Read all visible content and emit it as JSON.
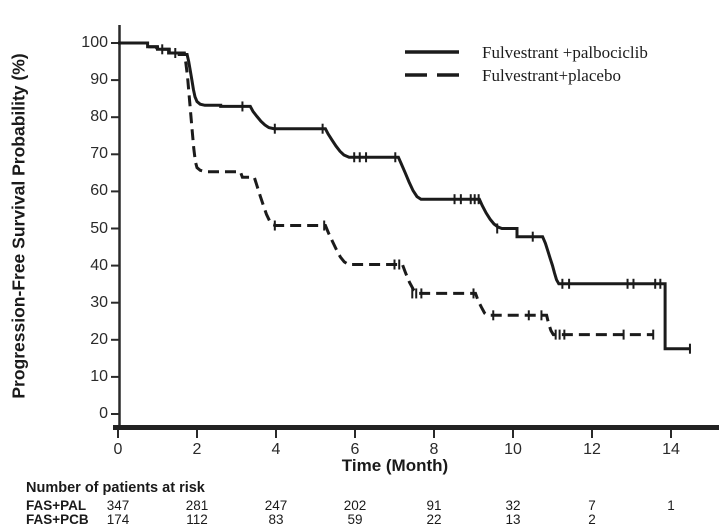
{
  "chart_data": {
    "type": "line",
    "subtype": "kaplan-meier-step",
    "title": "",
    "xlabel": "Time (Month)",
    "ylabel": "Progression-Free Survival Probability (%)",
    "xlim": [
      0,
      15.2
    ],
    "ylim": [
      0,
      100
    ],
    "x_ticks": [
      0,
      2,
      4,
      6,
      8,
      10,
      12,
      14
    ],
    "y_ticks": [
      0,
      10,
      20,
      30,
      40,
      50,
      60,
      70,
      80,
      90,
      100
    ],
    "grid": false,
    "legend_position": "top-right",
    "line_color": "#1b1b1b",
    "series": [
      {
        "name": "Fulvestrant +palbociclib",
        "style": "solid",
        "points": [
          [
            0,
            100
          ],
          [
            0.75,
            100
          ],
          [
            0.75,
            99
          ],
          [
            1.0,
            99
          ],
          [
            1.0,
            98.3
          ],
          [
            1.3,
            98.3
          ],
          [
            1.3,
            97.3
          ],
          [
            1.55,
            97.3
          ],
          [
            1.55,
            96.9
          ],
          [
            1.75,
            96.9
          ],
          [
            1.79,
            95
          ],
          [
            1.83,
            92.5
          ],
          [
            1.87,
            90
          ],
          [
            1.91,
            87.5
          ],
          [
            1.95,
            85.5
          ],
          [
            2.0,
            84.2
          ],
          [
            2.08,
            83.5
          ],
          [
            2.2,
            83.2
          ],
          [
            2.6,
            83.2
          ],
          [
            2.6,
            82.9
          ],
          [
            3.35,
            82.9
          ],
          [
            3.42,
            81.5
          ],
          [
            3.52,
            80.2
          ],
          [
            3.62,
            78.9
          ],
          [
            3.72,
            77.9
          ],
          [
            3.82,
            77.2
          ],
          [
            3.95,
            76.9
          ],
          [
            5.25,
            76.9
          ],
          [
            5.32,
            75.5
          ],
          [
            5.42,
            73.8
          ],
          [
            5.52,
            72.2
          ],
          [
            5.62,
            70.8
          ],
          [
            5.72,
            69.8
          ],
          [
            5.85,
            69.2
          ],
          [
            7.1,
            69.2
          ],
          [
            7.17,
            67.5
          ],
          [
            7.27,
            65.0
          ],
          [
            7.37,
            62.5
          ],
          [
            7.47,
            60.2
          ],
          [
            7.57,
            58.6
          ],
          [
            7.67,
            57.9
          ],
          [
            9.15,
            57.9
          ],
          [
            9.22,
            56.2
          ],
          [
            9.32,
            54.2
          ],
          [
            9.42,
            52.5
          ],
          [
            9.52,
            51.2
          ],
          [
            9.62,
            50.4
          ],
          [
            9.72,
            50.0
          ],
          [
            10.1,
            50.0
          ],
          [
            10.1,
            47.8
          ],
          [
            10.75,
            47.8
          ],
          [
            10.82,
            46.0
          ],
          [
            10.88,
            44.0
          ],
          [
            10.94,
            42.0
          ],
          [
            11.0,
            40.0
          ],
          [
            11.05,
            38.0
          ],
          [
            11.1,
            36.2
          ],
          [
            11.16,
            35.1
          ],
          [
            13.85,
            35.1
          ],
          [
            13.85,
            17.6
          ],
          [
            14.5,
            17.6
          ]
        ],
        "censors": [
          [
            1.12,
            98.3
          ],
          [
            1.45,
            97.3
          ],
          [
            3.15,
            82.9
          ],
          [
            3.97,
            76.9
          ],
          [
            5.18,
            76.9
          ],
          [
            5.98,
            69.2
          ],
          [
            6.12,
            69.2
          ],
          [
            6.28,
            69.2
          ],
          [
            7.02,
            69.2
          ],
          [
            8.52,
            57.9
          ],
          [
            8.68,
            57.9
          ],
          [
            8.93,
            57.9
          ],
          [
            9.03,
            57.9
          ],
          [
            9.13,
            57.9
          ],
          [
            9.6,
            50.0
          ],
          [
            10.5,
            47.8
          ],
          [
            11.25,
            35.1
          ],
          [
            11.42,
            35.1
          ],
          [
            12.9,
            35.1
          ],
          [
            13.05,
            35.1
          ],
          [
            13.6,
            35.1
          ],
          [
            13.73,
            35.1
          ],
          [
            14.48,
            17.6
          ]
        ]
      },
      {
        "name": "Fulvestrant+placebo",
        "style": "dashed",
        "points": [
          [
            0,
            100
          ],
          [
            0.72,
            100
          ],
          [
            0.72,
            99
          ],
          [
            0.98,
            99
          ],
          [
            0.98,
            98.3
          ],
          [
            1.28,
            98.3
          ],
          [
            1.28,
            97.3
          ],
          [
            1.68,
            97.3
          ],
          [
            1.72,
            94.5
          ],
          [
            1.76,
            91.0
          ],
          [
            1.8,
            86.0
          ],
          [
            1.84,
            81.0
          ],
          [
            1.88,
            76.0
          ],
          [
            1.92,
            71.5
          ],
          [
            1.96,
            68.0
          ],
          [
            2.0,
            66.4
          ],
          [
            2.08,
            65.7
          ],
          [
            2.2,
            65.3
          ],
          [
            3.1,
            65.3
          ],
          [
            3.15,
            63.8
          ],
          [
            3.45,
            63.8
          ],
          [
            3.52,
            61.5
          ],
          [
            3.6,
            58.8
          ],
          [
            3.68,
            56.2
          ],
          [
            3.76,
            53.8
          ],
          [
            3.84,
            52.0
          ],
          [
            3.92,
            51.0
          ],
          [
            4.0,
            50.8
          ],
          [
            5.25,
            50.8
          ],
          [
            5.33,
            48.8
          ],
          [
            5.43,
            46.5
          ],
          [
            5.53,
            44.3
          ],
          [
            5.63,
            42.3
          ],
          [
            5.73,
            41.0
          ],
          [
            5.83,
            40.3
          ],
          [
            7.2,
            40.3
          ],
          [
            7.28,
            38.0
          ],
          [
            7.38,
            35.5
          ],
          [
            7.48,
            33.5
          ],
          [
            7.58,
            32.5
          ],
          [
            9.05,
            32.5
          ],
          [
            9.12,
            30.5
          ],
          [
            9.2,
            28.8
          ],
          [
            9.28,
            27.2
          ],
          [
            9.35,
            26.6
          ],
          [
            10.85,
            26.6
          ],
          [
            10.9,
            24.5
          ],
          [
            10.96,
            22.5
          ],
          [
            11.02,
            21.4
          ],
          [
            13.55,
            21.4
          ]
        ],
        "censors": [
          [
            3.97,
            50.8
          ],
          [
            5.22,
            50.8
          ],
          [
            7.0,
            40.3
          ],
          [
            7.12,
            40.3
          ],
          [
            7.45,
            32.5
          ],
          [
            7.55,
            32.5
          ],
          [
            7.68,
            32.5
          ],
          [
            9.0,
            32.5
          ],
          [
            9.5,
            26.6
          ],
          [
            10.4,
            26.6
          ],
          [
            10.72,
            26.6
          ],
          [
            11.08,
            21.4
          ],
          [
            11.18,
            21.4
          ],
          [
            11.3,
            21.4
          ],
          [
            12.8,
            21.4
          ],
          [
            13.55,
            21.4
          ]
        ]
      }
    ]
  },
  "legend": {
    "items": [
      {
        "label": "Fulvestrant +palbociclib",
        "style": "solid"
      },
      {
        "label": "Fulvestrant+placebo",
        "style": "dashed"
      }
    ]
  },
  "risk_table": {
    "title": "Number of patients at risk",
    "time_points": [
      0,
      2,
      4,
      6,
      8,
      10,
      12,
      14
    ],
    "rows": [
      {
        "label": "FAS+PAL",
        "values": [
          "347",
          "281",
          "247",
          "202",
          "91",
          "32",
          "7",
          "1"
        ]
      },
      {
        "label": "FAS+PCB",
        "values": [
          "174",
          "112",
          "83",
          "59",
          "22",
          "13",
          "2",
          ""
        ]
      }
    ]
  },
  "colors": {
    "curve": "#1b1b1b",
    "axis": "#2a2a2a",
    "text": "#1a1a1a",
    "background": "#ffffff"
  }
}
